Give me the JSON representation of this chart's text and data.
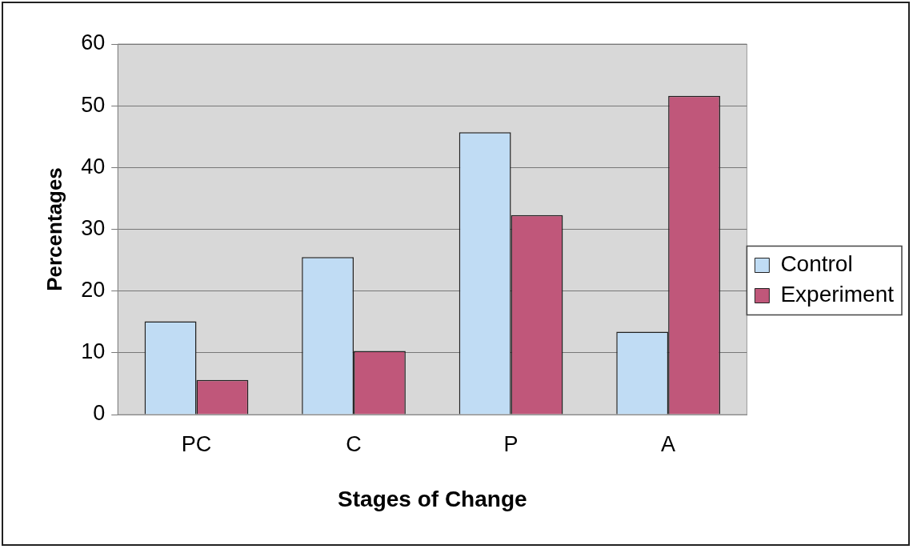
{
  "chart_data": {
    "type": "bar",
    "xlabel": "Stages of Change",
    "ylabel": "Percentages",
    "categories": [
      "PC",
      "C",
      "P",
      "A"
    ],
    "series": [
      {
        "name": "Control",
        "color": "#c0dcf4",
        "values": [
          15.1,
          25.5,
          45.7,
          13.4
        ]
      },
      {
        "name": "Experiment",
        "color": "#c0577a",
        "values": [
          5.6,
          10.3,
          32.3,
          51.6
        ]
      }
    ],
    "ylim": [
      0,
      60
    ],
    "yticks": [
      0,
      10,
      20,
      30,
      40,
      50,
      60
    ],
    "grid": "y",
    "legend": "right"
  }
}
